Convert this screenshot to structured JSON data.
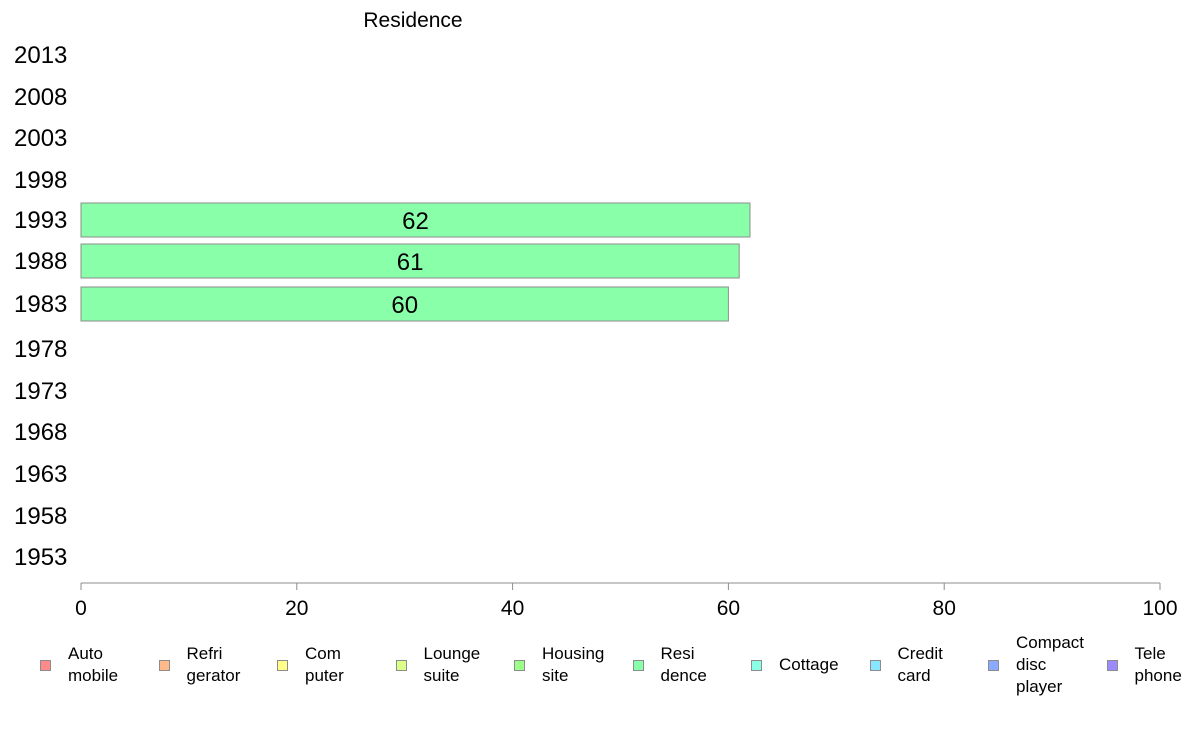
{
  "chart_data": {
    "type": "bar",
    "orientation": "horizontal",
    "title": "Residence",
    "categories": [
      "2013",
      "2008",
      "2003",
      "1998",
      "1993",
      "1988",
      "1983",
      "1978",
      "1973",
      "1968",
      "1963",
      "1958",
      "1953"
    ],
    "series": [
      {
        "name": "Residence",
        "color": "#8affaa",
        "values": [
          null,
          null,
          null,
          null,
          62,
          61,
          60,
          null,
          null,
          null,
          null,
          null,
          null
        ],
        "labels": [
          "",
          "",
          "",
          "",
          "62",
          "61",
          "60",
          "",
          "",
          "",
          "",
          "",
          ""
        ]
      }
    ],
    "x_ticks": [
      "0",
      "20",
      "40",
      "60",
      "80",
      "100"
    ],
    "xlim": [
      0,
      100
    ],
    "grid": false,
    "legend_position": "bottom"
  },
  "legend": [
    {
      "label": "Auto\nmobile",
      "color": "#ff8a8a"
    },
    {
      "label": "Refri\ngerator",
      "color": "#ffb98a"
    },
    {
      "label": "Com\nputer",
      "color": "#ffff8a"
    },
    {
      "label": "Lounge\nsuite",
      "color": "#dcff8a"
    },
    {
      "label": "Housing\nsite",
      "color": "#9cff8a"
    },
    {
      "label": "Resi\ndence",
      "color": "#8affaa"
    },
    {
      "label": "Cottage",
      "color": "#8affe6"
    },
    {
      "label": "Credit\ncard",
      "color": "#8ae6ff"
    },
    {
      "label": "Compact\ndisc\nplayer",
      "color": "#8aaaff"
    },
    {
      "label": "Tele\nphone",
      "color": "#9c8aff"
    }
  ]
}
